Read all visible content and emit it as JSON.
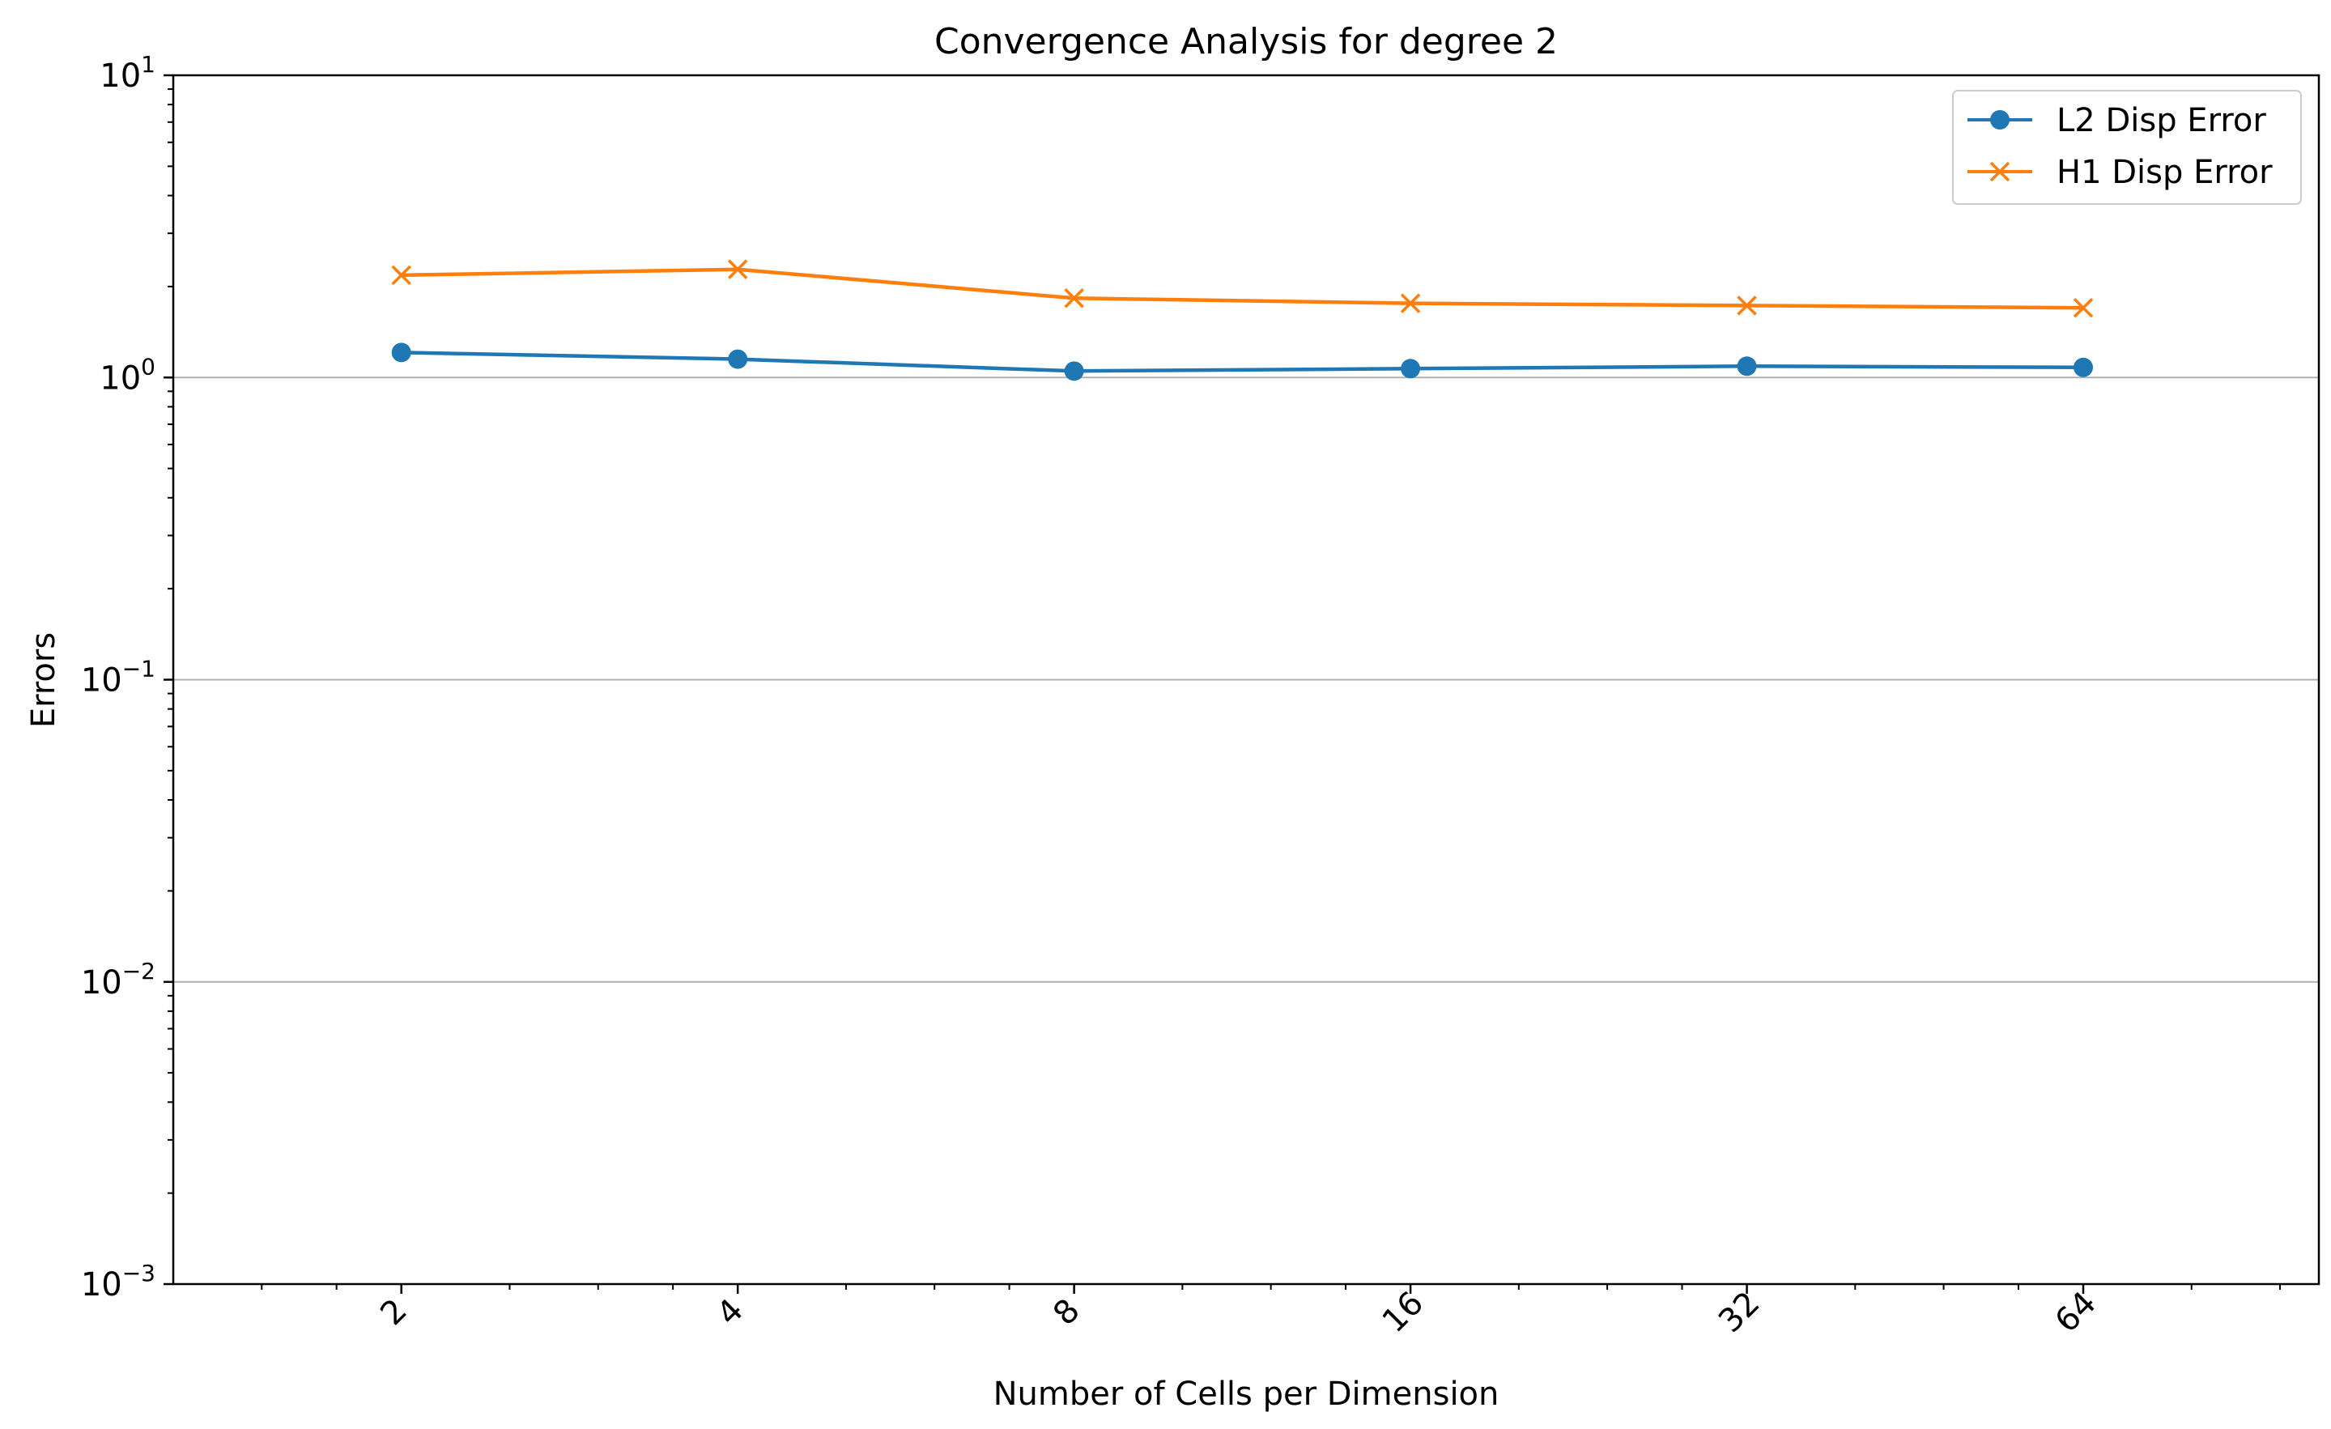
{
  "chart_data": {
    "type": "line",
    "title": "Convergence Analysis for degree 2",
    "xlabel": "Number of Cells per Dimension",
    "ylabel": "Errors",
    "x_scale": "log2",
    "y_scale": "log10",
    "x": [
      2,
      4,
      8,
      16,
      32,
      64
    ],
    "x_tick_labels": [
      "2",
      "4",
      "8",
      "16",
      "32",
      "64"
    ],
    "x_tick_rotation_deg": 45,
    "xlim": [
      1.25,
      104
    ],
    "ylim": [
      0.001,
      10
    ],
    "y_ticks": [
      {
        "value": 0.001,
        "base": "10",
        "exp": "−3"
      },
      {
        "value": 0.01,
        "base": "10",
        "exp": "−2"
      },
      {
        "value": 0.1,
        "base": "10",
        "exp": "−1"
      },
      {
        "value": 1,
        "base": "10",
        "exp": "0"
      },
      {
        "value": 10,
        "base": "10",
        "exp": "1"
      }
    ],
    "grid": "y-major",
    "legend_position": "top-right",
    "series": [
      {
        "name": "L2 Disp Error",
        "color": "#1f77b4",
        "marker": "circle",
        "values": [
          1.21,
          1.15,
          1.05,
          1.07,
          1.09,
          1.08
        ]
      },
      {
        "name": "H1 Disp Error",
        "color": "#ff7f0e",
        "marker": "x",
        "values": [
          2.18,
          2.28,
          1.83,
          1.76,
          1.73,
          1.7
        ]
      }
    ]
  }
}
